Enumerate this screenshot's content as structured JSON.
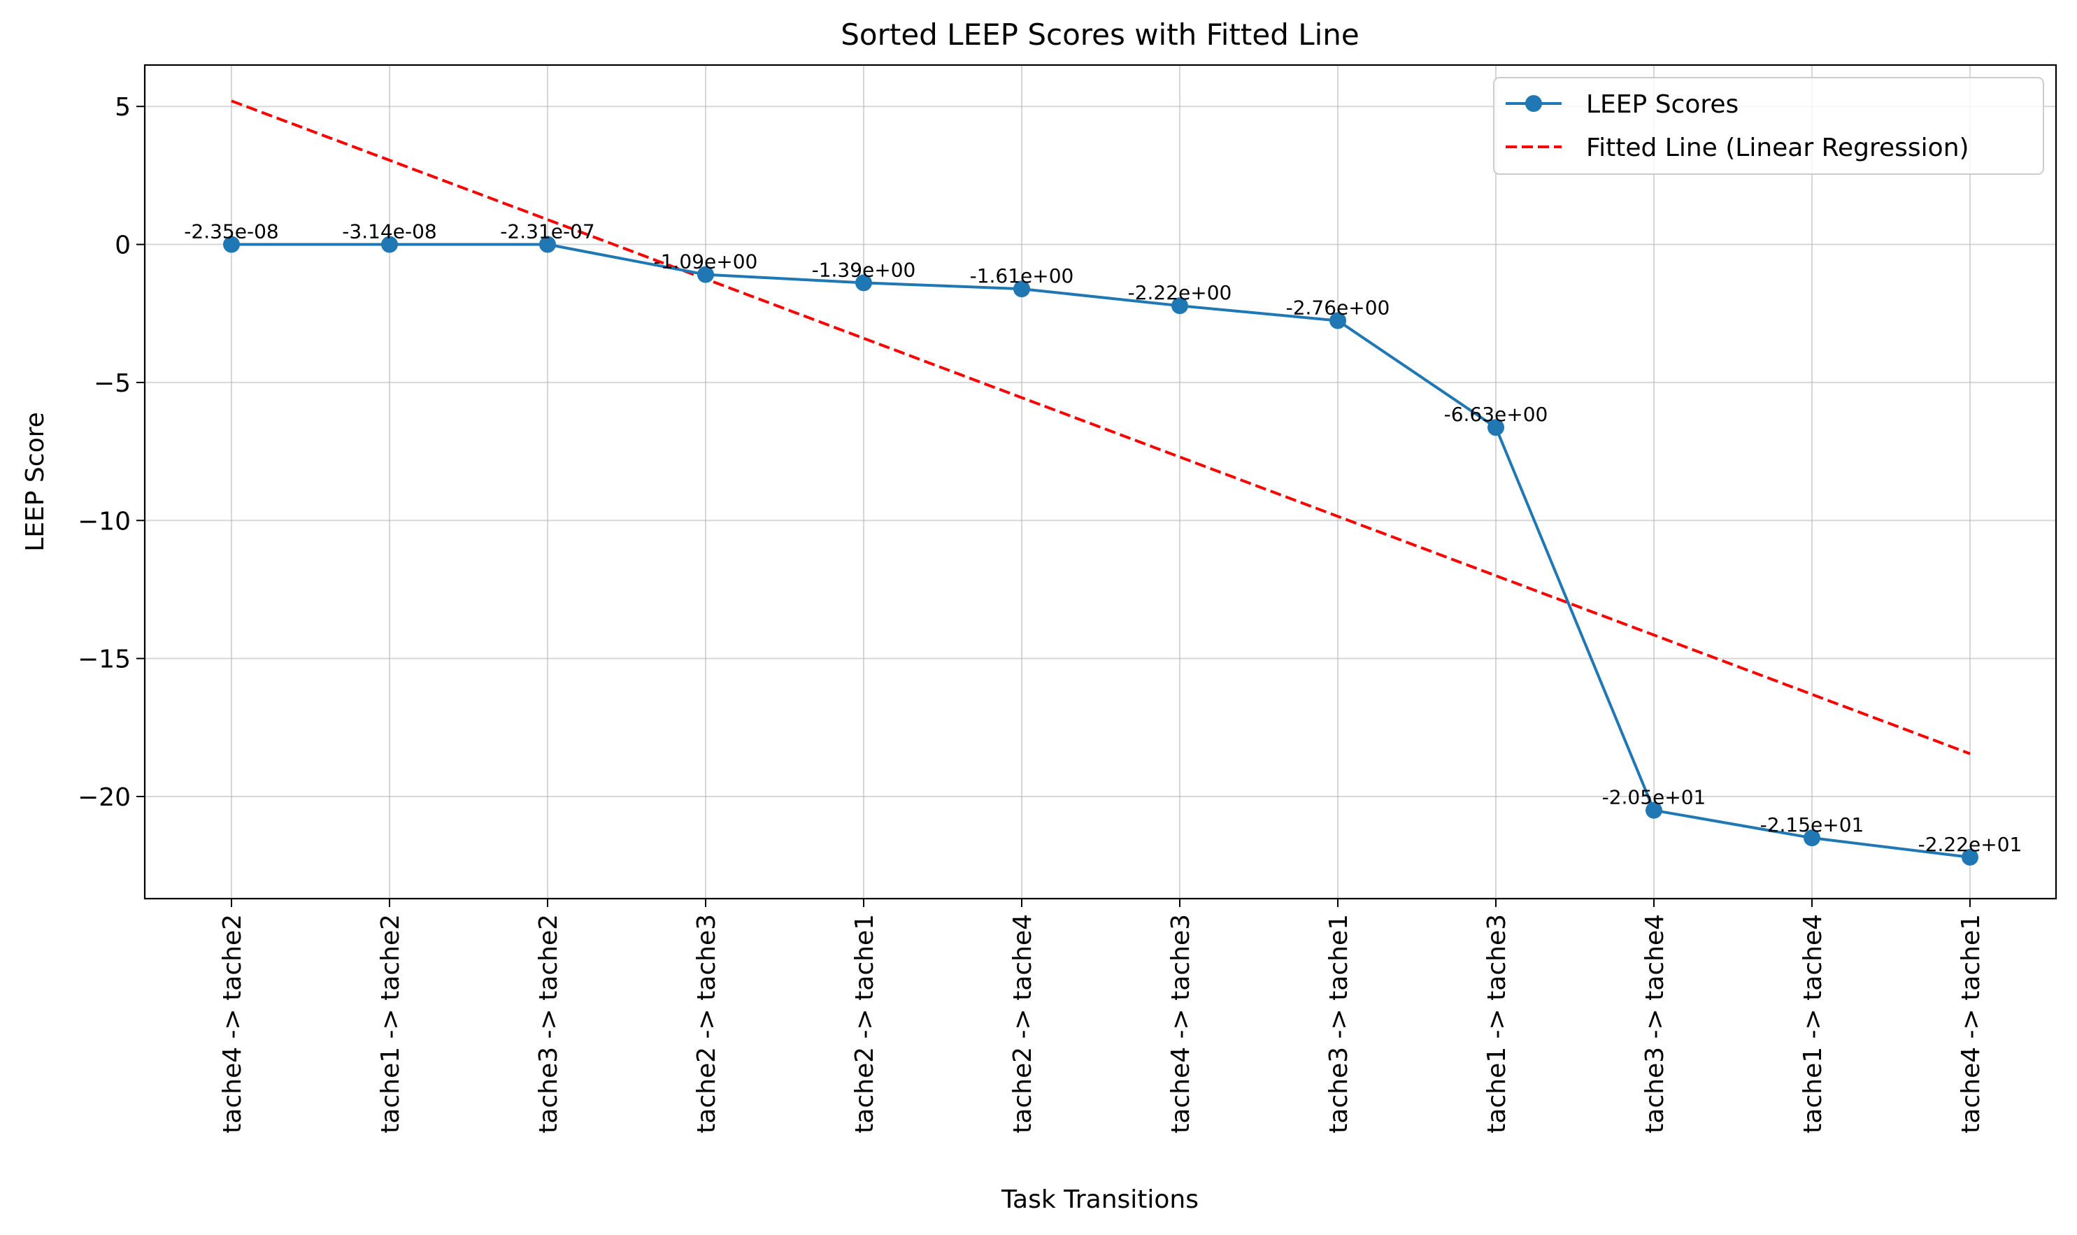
{
  "chart_data": {
    "type": "line",
    "title": "Sorted LEEP Scores with Fitted Line",
    "xlabel": "Task Transitions",
    "ylabel": "LEEP Score",
    "categories": [
      "tache4 -> tache2",
      "tache1 -> tache2",
      "tache3 -> tache2",
      "tache2 -> tache3",
      "tache2 -> tache1",
      "tache2 -> tache4",
      "tache4 -> tache3",
      "tache3 -> tache1",
      "tache1 -> tache3",
      "tache3 -> tache4",
      "tache1 -> tache4",
      "tache4 -> tache1"
    ],
    "series": [
      {
        "name": "LEEP Scores",
        "color": "#1f77b4",
        "style": "solid-with-markers",
        "values": [
          -2.35e-08,
          -3.14e-08,
          -2.31e-07,
          -1.09,
          -1.39,
          -1.61,
          -2.22,
          -2.76,
          -6.63,
          -20.5,
          -21.5,
          -22.2
        ],
        "labels": [
          "-2.35e-08",
          "-3.14e-08",
          "-2.31e-07",
          "-1.09e+00",
          "-1.39e+00",
          "-1.61e+00",
          "-2.22e+00",
          "-2.76e+00",
          "-6.63e+00",
          "-2.05e+01",
          "-2.15e+01",
          "-2.22e+01"
        ]
      },
      {
        "name": "Fitted Line (Linear Regression)",
        "color": "#ff0000",
        "style": "dashed",
        "values": [
          5.2,
          3.05,
          0.9,
          -1.25,
          -3.4,
          -5.55,
          -7.7,
          -9.85,
          -12.0,
          -14.15,
          -16.3,
          -18.45
        ]
      }
    ],
    "ylim": [
      -23.7,
      6.5
    ],
    "yticks": [
      5,
      0,
      -5,
      -10,
      -15,
      -20
    ],
    "ytick_labels": [
      "5",
      "0",
      "−5",
      "−10",
      "−15",
      "−20"
    ],
    "grid": true,
    "legend_position": "top-right"
  }
}
